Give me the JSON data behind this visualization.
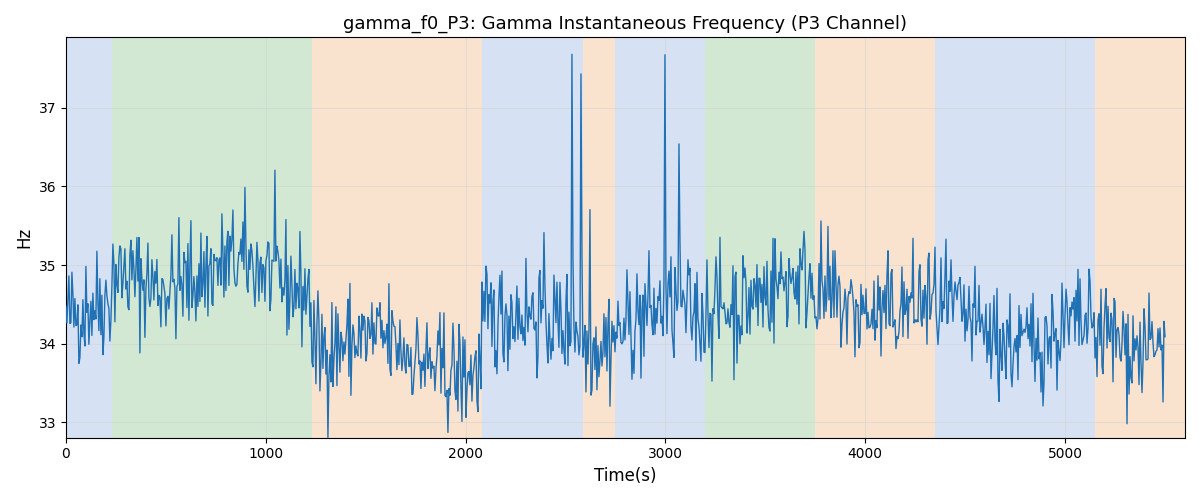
{
  "title": "gamma_f0_P3: Gamma Instantaneous Frequency (P3 Channel)",
  "xlabel": "Time(s)",
  "ylabel": "Hz",
  "xlim": [
    0,
    5600
  ],
  "ylim": [
    32.8,
    37.9
  ],
  "yticks": [
    33,
    34,
    35,
    36,
    37
  ],
  "xticks": [
    0,
    1000,
    2000,
    3000,
    4000,
    5000
  ],
  "line_color": "#2171b5",
  "line_width": 1.0,
  "background_regions": [
    {
      "xstart": 0,
      "xend": 230,
      "color": "#aec6e8",
      "alpha": 0.5
    },
    {
      "xstart": 230,
      "xend": 1230,
      "color": "#90c790",
      "alpha": 0.4
    },
    {
      "xstart": 1230,
      "xend": 2080,
      "color": "#f7c99e",
      "alpha": 0.5
    },
    {
      "xstart": 2080,
      "xend": 2590,
      "color": "#aec6e8",
      "alpha": 0.5
    },
    {
      "xstart": 2590,
      "xend": 2750,
      "color": "#f7c99e",
      "alpha": 0.5
    },
    {
      "xstart": 2750,
      "xend": 3090,
      "color": "#aec6e8",
      "alpha": 0.5
    },
    {
      "xstart": 3090,
      "xend": 3200,
      "color": "#aec6e8",
      "alpha": 0.5
    },
    {
      "xstart": 3200,
      "xend": 3750,
      "color": "#90c790",
      "alpha": 0.4
    },
    {
      "xstart": 3750,
      "xend": 4350,
      "color": "#f7c99e",
      "alpha": 0.5
    },
    {
      "xstart": 4350,
      "xend": 5000,
      "color": "#aec6e8",
      "alpha": 0.5
    },
    {
      "xstart": 5000,
      "xend": 5150,
      "color": "#aec6e8",
      "alpha": 0.5
    },
    {
      "xstart": 5150,
      "xend": 5600,
      "color": "#f7c99e",
      "alpha": 0.5
    }
  ],
  "seed": 42,
  "n_points": 1100,
  "base_freq": 34.3,
  "noise_scale": 0.35
}
